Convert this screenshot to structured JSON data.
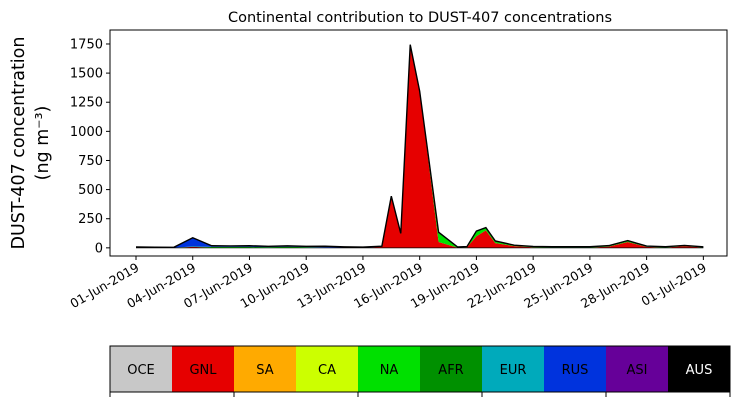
{
  "chart_data": {
    "type": "area",
    "title": "Continental contribution to DUST-407 concentrations",
    "ylabel_line1": "DUST-407 concentration",
    "ylabel_line2": "(ng m⁻³)",
    "xlabel": "",
    "x_dates": [
      "2019-06-01",
      "2019-06-02",
      "2019-06-03",
      "2019-06-04",
      "2019-06-05",
      "2019-06-06",
      "2019-06-07",
      "2019-06-08",
      "2019-06-09",
      "2019-06-10",
      "2019-06-11",
      "2019-06-12",
      "2019-06-13",
      "2019-06-14",
      "2019-06-14T12",
      "2019-06-15",
      "2019-06-15T12",
      "2019-06-16",
      "2019-06-17",
      "2019-06-18",
      "2019-06-18T12",
      "2019-06-19",
      "2019-06-19T12",
      "2019-06-20",
      "2019-06-21",
      "2019-06-22",
      "2019-06-23",
      "2019-06-24",
      "2019-06-25",
      "2019-06-26",
      "2019-06-27",
      "2019-06-28",
      "2019-06-29",
      "2019-06-30",
      "2019-07-01"
    ],
    "ylim": [
      -70,
      1870
    ],
    "y_ticks": [
      0,
      250,
      500,
      750,
      1000,
      1250,
      1500,
      1750
    ],
    "x_ticks": [
      {
        "date": "2019-06-01",
        "label": "01-Jun-2019"
      },
      {
        "date": "2019-06-04",
        "label": "04-Jun-2019"
      },
      {
        "date": "2019-06-07",
        "label": "07-Jun-2019"
      },
      {
        "date": "2019-06-10",
        "label": "10-Jun-2019"
      },
      {
        "date": "2019-06-13",
        "label": "13-Jun-2019"
      },
      {
        "date": "2019-06-16",
        "label": "16-Jun-2019"
      },
      {
        "date": "2019-06-19",
        "label": "19-Jun-2019"
      },
      {
        "date": "2019-06-22",
        "label": "22-Jun-2019"
      },
      {
        "date": "2019-06-25",
        "label": "25-Jun-2019"
      },
      {
        "date": "2019-06-28",
        "label": "28-Jun-2019"
      },
      {
        "date": "2019-07-01",
        "label": "01-Jul-2019"
      }
    ],
    "x_range": [
      "2019-05-30T15",
      "2019-07-02T06"
    ],
    "series": [
      {
        "name": "OCE",
        "color": "#c8c8c8",
        "values": [
          0,
          0,
          0,
          0,
          0,
          0,
          0,
          0,
          0,
          0,
          0,
          0,
          0,
          0,
          0,
          0,
          0,
          0,
          0,
          0,
          0,
          0,
          0,
          0,
          0,
          0,
          0,
          0,
          0,
          0,
          0,
          0,
          0,
          0,
          0
        ]
      },
      {
        "name": "GNL",
        "color": "#e60000",
        "values": [
          2,
          1,
          1,
          8,
          3,
          2,
          3,
          2,
          3,
          2,
          1,
          1,
          1,
          10,
          440,
          120,
          1740,
          1340,
          50,
          2,
          5,
          100,
          150,
          40,
          15,
          5,
          3,
          3,
          3,
          10,
          50,
          8,
          3,
          15,
          3
        ]
      },
      {
        "name": "SA",
        "color": "#ffaa00",
        "values": [
          0,
          0,
          0,
          0,
          0,
          0,
          0,
          0,
          0,
          0,
          0,
          0,
          0,
          0,
          0,
          0,
          0,
          0,
          0,
          0,
          0,
          0,
          0,
          0,
          0,
          0,
          0,
          0,
          0,
          0,
          0,
          0,
          0,
          0,
          0
        ]
      },
      {
        "name": "CA",
        "color": "#ccff00",
        "values": [
          0,
          0,
          0,
          0,
          0,
          0,
          0,
          0,
          0,
          0,
          0,
          0,
          0,
          0,
          0,
          0,
          0,
          0,
          0,
          0,
          0,
          0,
          0,
          0,
          0,
          0,
          0,
          0,
          0,
          0,
          0,
          0,
          0,
          0,
          0
        ]
      },
      {
        "name": "NA",
        "color": "#00e000",
        "values": [
          0,
          1,
          0,
          2,
          4,
          5,
          4,
          4,
          5,
          4,
          2,
          1,
          0,
          0,
          0,
          0,
          0,
          0,
          80,
          2,
          2,
          40,
          20,
          15,
          4,
          3,
          3,
          3,
          3,
          5,
          8,
          3,
          3,
          2,
          2
        ]
      },
      {
        "name": "AFR",
        "color": "#009000",
        "values": [
          0,
          0,
          0,
          0,
          0,
          0,
          0,
          0,
          0,
          0,
          0,
          0,
          0,
          0,
          0,
          0,
          0,
          0,
          0,
          0,
          0,
          0,
          0,
          0,
          0,
          0,
          0,
          0,
          0,
          0,
          0,
          0,
          0,
          0,
          0
        ]
      },
      {
        "name": "EUR",
        "color": "#00aabb",
        "values": [
          1,
          1,
          1,
          2,
          1,
          1,
          1,
          1,
          1,
          1,
          1,
          1,
          1,
          1,
          1,
          1,
          1,
          1,
          1,
          1,
          1,
          1,
          1,
          1,
          1,
          1,
          1,
          1,
          1,
          1,
          1,
          1,
          1,
          1,
          1
        ]
      },
      {
        "name": "RUS",
        "color": "#0033dd",
        "values": [
          5,
          3,
          3,
          75,
          10,
          8,
          10,
          6,
          8,
          6,
          10,
          6,
          5,
          3,
          3,
          3,
          3,
          3,
          3,
          3,
          3,
          3,
          3,
          3,
          3,
          3,
          3,
          3,
          3,
          3,
          3,
          3,
          3,
          3,
          3
        ]
      },
      {
        "name": "ASI",
        "color": "#660099",
        "values": [
          0,
          0,
          0,
          0,
          0,
          0,
          0,
          0,
          0,
          0,
          0,
          0,
          0,
          0,
          0,
          0,
          0,
          0,
          0,
          0,
          0,
          0,
          0,
          0,
          0,
          0,
          0,
          0,
          0,
          0,
          0,
          0,
          0,
          0,
          0
        ]
      },
      {
        "name": "AUS",
        "color": "#000000",
        "values": [
          0,
          0,
          0,
          0,
          0,
          0,
          0,
          0,
          0,
          0,
          0,
          0,
          0,
          0,
          0,
          0,
          0,
          0,
          0,
          0,
          0,
          0,
          0,
          0,
          0,
          0,
          0,
          0,
          0,
          0,
          0,
          0,
          0,
          0,
          0
        ]
      }
    ],
    "legend": {
      "placement": "bottom",
      "items": [
        {
          "label": "OCE",
          "color": "#c8c8c8",
          "text_color": "#000000"
        },
        {
          "label": "GNL",
          "color": "#e60000",
          "text_color": "#000000"
        },
        {
          "label": "SA",
          "color": "#ffaa00",
          "text_color": "#000000"
        },
        {
          "label": "CA",
          "color": "#ccff00",
          "text_color": "#000000"
        },
        {
          "label": "NA",
          "color": "#00e000",
          "text_color": "#000000"
        },
        {
          "label": "AFR",
          "color": "#009000",
          "text_color": "#000000"
        },
        {
          "label": "EUR",
          "color": "#00aabb",
          "text_color": "#000000"
        },
        {
          "label": "RUS",
          "color": "#0033dd",
          "text_color": "#000000"
        },
        {
          "label": "ASI",
          "color": "#660099",
          "text_color": "#000000"
        },
        {
          "label": "AUS",
          "color": "#000000",
          "text_color": "#ffffff"
        }
      ]
    },
    "grid": false
  }
}
